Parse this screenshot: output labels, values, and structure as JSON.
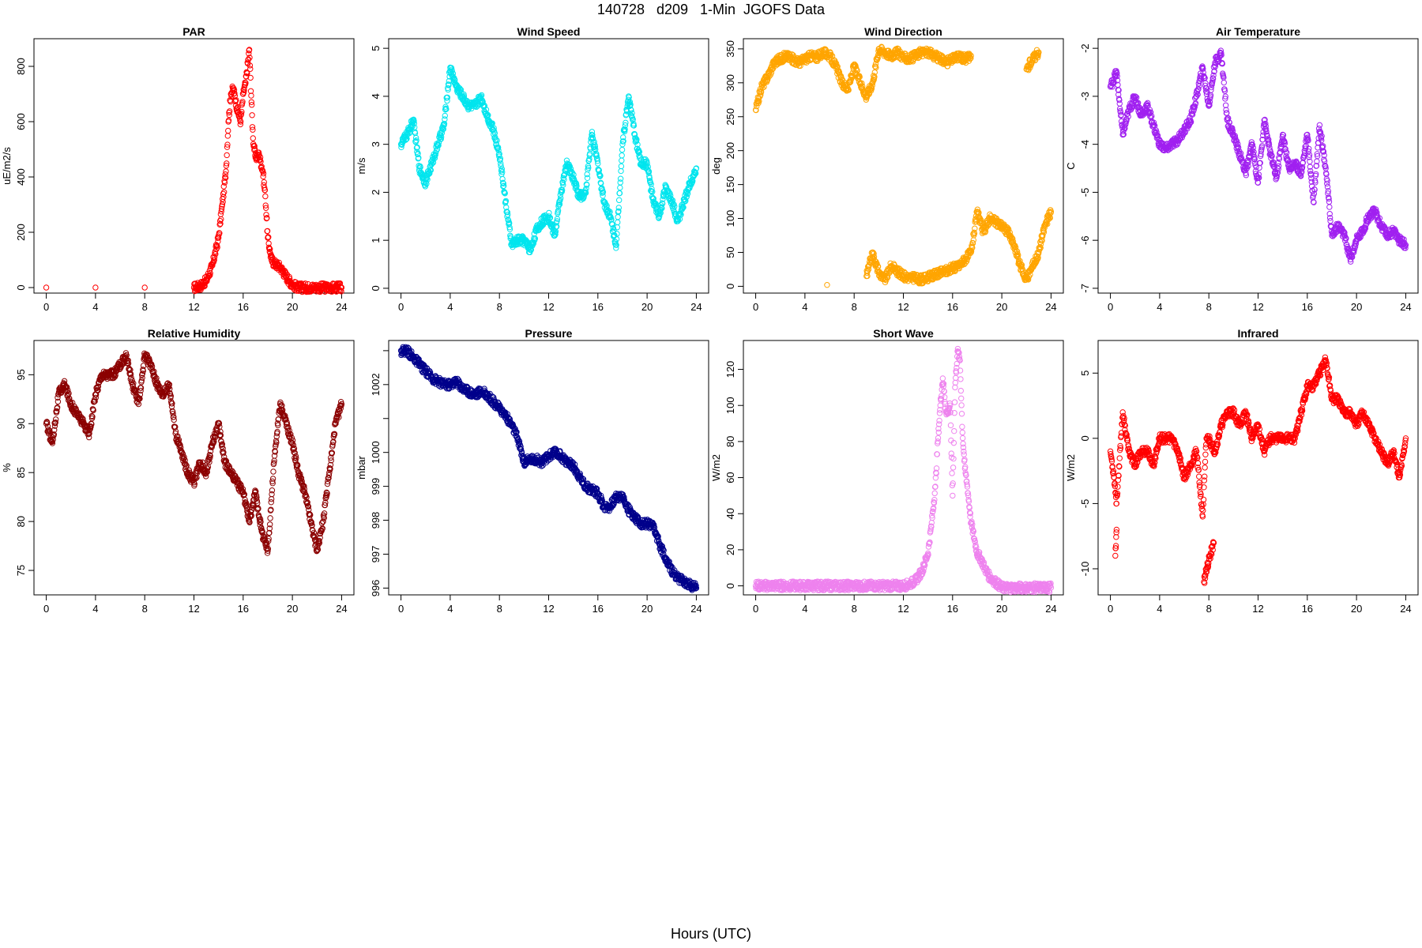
{
  "page_title": "140728   d209   1-Min  JGOFS Data",
  "x_caption": "Hours (UTC)",
  "chart_data": [
    {
      "type": "scatter",
      "title": "PAR",
      "ylabel": "uE/m2/s",
      "color": "#ff0000",
      "xlim": [
        -1,
        25
      ],
      "ylim": [
        -20,
        900
      ],
      "xticks": [
        0,
        4,
        8,
        12,
        16,
        20,
        24
      ],
      "yticks": [
        0,
        200,
        400,
        600,
        800
      ],
      "series": [
        {
          "x": [
            0,
            4,
            8,
            12,
            12.5,
            13,
            13.5,
            14,
            14.3,
            14.6,
            14.8,
            15,
            15.2,
            15.5,
            15.8,
            16,
            16.2,
            16.5,
            16.8,
            17,
            17.3,
            17.6,
            17.8,
            18,
            18.3,
            18.6,
            19,
            19.5,
            20,
            20.5,
            21,
            22,
            23,
            24
          ],
          "y": [
            0,
            0,
            0,
            0,
            5,
            25,
            80,
            180,
            300,
            420,
            600,
            700,
            720,
            650,
            600,
            700,
            740,
            860,
            540,
            470,
            480,
            420,
            330,
            180,
            100,
            85,
            75,
            40,
            10,
            0,
            0,
            0,
            0,
            0
          ]
        }
      ]
    },
    {
      "type": "scatter",
      "title": "Wind Speed",
      "ylabel": "m/s",
      "color": "#00e5ee",
      "xlim": [
        -1,
        25
      ],
      "ylim": [
        -0.1,
        5.2
      ],
      "xticks": [
        0,
        4,
        8,
        12,
        16,
        20,
        24
      ],
      "yticks": [
        0,
        1,
        2,
        3,
        4,
        5
      ],
      "series": [
        {
          "x": [
            0,
            0.5,
            1,
            1.5,
            2,
            2.5,
            3,
            3.5,
            4,
            4.5,
            5,
            5.5,
            6,
            6.5,
            7,
            7.5,
            8,
            8.5,
            9,
            9.5,
            10,
            10.5,
            11,
            11.5,
            12,
            12.5,
            13,
            13.5,
            14,
            14.5,
            15,
            15.5,
            16,
            16.5,
            17,
            17.5,
            18,
            18.5,
            19,
            19.5,
            20,
            20.5,
            21,
            21.5,
            22,
            22.5,
            23,
            23.5,
            24
          ],
          "y": [
            3.0,
            3.2,
            3.5,
            2.5,
            2.2,
            2.6,
            3.0,
            3.4,
            4.6,
            4.2,
            4.0,
            3.8,
            3.8,
            4.0,
            3.6,
            3.3,
            2.8,
            1.8,
            0.9,
            1.0,
            1.0,
            0.8,
            1.2,
            1.4,
            1.5,
            1.1,
            2.0,
            2.6,
            2.3,
            1.9,
            2.0,
            3.2,
            2.6,
            1.8,
            1.5,
            0.9,
            3.0,
            4.0,
            3.2,
            2.6,
            2.6,
            1.8,
            1.5,
            2.1,
            1.8,
            1.4,
            1.8,
            2.2,
            2.5
          ]
        }
      ]
    },
    {
      "type": "scatter",
      "title": "Wind Direction",
      "ylabel": "deg",
      "color": "#ffa500",
      "xlim": [
        -1,
        25
      ],
      "ylim": [
        -10,
        365
      ],
      "xticks": [
        0,
        4,
        8,
        12,
        16,
        20,
        24
      ],
      "yticks": [
        0,
        50,
        100,
        150,
        200,
        250,
        300,
        350
      ],
      "series": [
        {
          "x": [
            0,
            0.5,
            1,
            1.5,
            2,
            2.5,
            3,
            3.5,
            4,
            4.5,
            5,
            5.5,
            6,
            6.5,
            7,
            7.5,
            8,
            8.5,
            9,
            9.5,
            10,
            10.5,
            11,
            11.5,
            12,
            12.5,
            13,
            13.5,
            14,
            14.5,
            15,
            15.5,
            16,
            16.5,
            17,
            17.5,
            5.8,
            9,
            9.5,
            10,
            10.5,
            11,
            12,
            13.5,
            16.5,
            17,
            17.5,
            18,
            18.5,
            19,
            19.5,
            20,
            20.5,
            21,
            21.5,
            22,
            22.5,
            23,
            23.5,
            24,
            22,
            22.5,
            23
          ],
          "y": [
            260,
            295,
            310,
            330,
            335,
            340,
            335,
            330,
            335,
            340,
            338,
            345,
            340,
            325,
            300,
            290,
            325,
            300,
            280,
            300,
            350,
            345,
            340,
            345,
            338,
            335,
            340,
            345,
            345,
            340,
            335,
            330,
            335,
            340,
            335,
            340,
            2,
            15,
            50,
            20,
            10,
            30,
            15,
            10,
            30,
            40,
            50,
            110,
            80,
            100,
            95,
            90,
            80,
            60,
            30,
            10,
            30,
            50,
            90,
            110,
            320,
            335,
            345
          ]
        }
      ]
    },
    {
      "type": "scatter",
      "title": "Air Temperature",
      "ylabel": "C",
      "color": "#a020f0",
      "xlim": [
        -1,
        25
      ],
      "ylim": [
        -7.1,
        -1.8
      ],
      "xticks": [
        0,
        4,
        8,
        12,
        16,
        20,
        24
      ],
      "yticks": [
        -7,
        -6,
        -5,
        -4,
        -3,
        -2
      ],
      "series": [
        {
          "x": [
            0,
            0.5,
            1,
            1.5,
            2,
            2.5,
            3,
            3.5,
            4,
            4.5,
            5,
            5.5,
            6,
            6.5,
            7,
            7.5,
            8,
            8.5,
            9,
            9.5,
            10,
            10.5,
            11,
            11.5,
            12,
            12.5,
            13,
            13.5,
            14,
            14.5,
            15,
            15.5,
            16,
            16.5,
            17,
            17.5,
            18,
            18.5,
            19,
            19.5,
            20,
            20.5,
            21,
            21.5,
            22,
            22.5,
            23,
            23.5,
            24
          ],
          "y": [
            -2.8,
            -2.5,
            -3.8,
            -3.3,
            -3.0,
            -3.4,
            -3.2,
            -3.6,
            -4.0,
            -4.1,
            -4.0,
            -3.9,
            -3.7,
            -3.5,
            -3.0,
            -2.4,
            -3.2,
            -2.3,
            -2.1,
            -3.5,
            -3.8,
            -4.2,
            -4.6,
            -4.0,
            -4.8,
            -3.5,
            -4.2,
            -4.7,
            -3.8,
            -4.5,
            -4.4,
            -4.6,
            -3.8,
            -5.2,
            -3.6,
            -4.5,
            -5.9,
            -5.7,
            -5.9,
            -6.4,
            -6.0,
            -5.8,
            -5.5,
            -5.4,
            -5.7,
            -5.9,
            -5.8,
            -6.0,
            -6.1
          ]
        }
      ]
    },
    {
      "type": "scatter",
      "title": "Relative Humidity",
      "ylabel": "%",
      "color": "#8b0000",
      "xlim": [
        -1,
        25
      ],
      "ylim": [
        72.5,
        98.5
      ],
      "xticks": [
        0,
        4,
        8,
        12,
        16,
        20,
        24
      ],
      "yticks": [
        75,
        80,
        85,
        90,
        95
      ],
      "series": [
        {
          "x": [
            0,
            0.5,
            1,
            1.5,
            2,
            2.5,
            3,
            3.5,
            4,
            4.5,
            5,
            5.5,
            6,
            6.5,
            7,
            7.5,
            8,
            8.5,
            9,
            9.5,
            10,
            10.5,
            11,
            11.5,
            12,
            12.5,
            13,
            13.5,
            14,
            14.5,
            15,
            15.5,
            16,
            16.5,
            17,
            17.5,
            18,
            18.5,
            19,
            19.5,
            20,
            20.5,
            21,
            21.5,
            22,
            22.5,
            23,
            23.5,
            24
          ],
          "y": [
            90,
            88,
            93,
            94,
            92,
            91,
            90,
            89,
            93,
            95,
            95,
            95,
            96,
            97,
            94,
            92,
            97,
            96,
            94,
            93,
            94,
            89,
            87,
            85,
            84,
            86,
            85,
            88,
            90,
            86,
            85,
            84,
            83,
            80,
            83,
            79,
            77,
            86,
            92,
            90,
            88,
            85,
            83,
            80,
            77,
            80,
            85,
            90,
            92
          ]
        }
      ]
    },
    {
      "type": "scatter",
      "title": "Pressure",
      "ylabel": "mbar",
      "color": "#00008b",
      "xlim": [
        -1,
        25
      ],
      "ylim": [
        995.8,
        1003.3
      ],
      "xticks": [
        0,
        4,
        8,
        12,
        16,
        20,
        24
      ],
      "yticks": [
        996,
        997,
        998,
        999,
        1000,
        1001,
        1002,
        1003
      ],
      "ytick_labels": [
        "996",
        "997",
        "998",
        "999",
        "1000",
        "",
        "1002",
        ""
      ],
      "series": [
        {
          "x": [
            0,
            0.5,
            1,
            1.5,
            2,
            2.5,
            3,
            3.5,
            4,
            4.5,
            5,
            5.5,
            6,
            6.5,
            7,
            7.5,
            8,
            8.5,
            9,
            9.5,
            10,
            10.5,
            11,
            11.5,
            12,
            12.5,
            13,
            13.5,
            14,
            14.5,
            15,
            15.5,
            16,
            16.5,
            17,
            17.5,
            18,
            18.5,
            19,
            19.5,
            20,
            20.5,
            21,
            21.5,
            22,
            22.5,
            23,
            23.5,
            24
          ],
          "y": [
            1003.0,
            1003.0,
            1002.8,
            1002.6,
            1002.4,
            1002.2,
            1002.1,
            1002.0,
            1002.0,
            1002.1,
            1001.9,
            1001.8,
            1001.7,
            1001.8,
            1001.7,
            1001.5,
            1001.3,
            1001.1,
            1000.8,
            1000.4,
            999.7,
            999.8,
            999.8,
            999.7,
            999.9,
            1000.0,
            999.9,
            999.7,
            999.6,
            999.3,
            999.0,
            998.9,
            998.8,
            998.4,
            998.4,
            998.7,
            998.7,
            998.3,
            998.1,
            997.9,
            997.9,
            997.8,
            997.3,
            996.9,
            996.5,
            996.3,
            996.2,
            996.1,
            996.0
          ]
        }
      ]
    },
    {
      "type": "scatter",
      "title": "Short Wave",
      "ylabel": "W/m2",
      "color": "#ee82ee",
      "xlim": [
        -1,
        25
      ],
      "ylim": [
        -5,
        136
      ],
      "xticks": [
        0,
        4,
        8,
        12,
        16,
        20,
        24
      ],
      "yticks": [
        0,
        20,
        40,
        60,
        80,
        100,
        120
      ],
      "series": [
        {
          "x": [
            0,
            2,
            4,
            6,
            8,
            10,
            12,
            12.5,
            13,
            13.5,
            14,
            14.3,
            14.6,
            14.8,
            15,
            15.2,
            15.5,
            15.8,
            16,
            16.2,
            16.4,
            16.6,
            16.8,
            17,
            17.2,
            17.5,
            17.8,
            18,
            18.3,
            18.6,
            19,
            19.5,
            20,
            21,
            22,
            23,
            24
          ],
          "y": [
            0,
            0,
            0,
            0,
            0,
            0,
            0,
            1,
            3,
            8,
            18,
            35,
            55,
            80,
            100,
            115,
            95,
            100,
            50,
            110,
            130,
            125,
            85,
            65,
            55,
            35,
            25,
            18,
            15,
            10,
            5,
            2,
            -1,
            -1,
            -1,
            -1,
            -1
          ]
        }
      ]
    },
    {
      "type": "scatter",
      "title": "Infrared",
      "ylabel": "W/m2",
      "color": "#ff0000",
      "xlim": [
        -1,
        25
      ],
      "ylim": [
        -12,
        7.5
      ],
      "xticks": [
        0,
        4,
        8,
        12,
        16,
        20,
        24
      ],
      "yticks": [
        -10,
        -5,
        0,
        5
      ],
      "series": [
        {
          "x": [
            0,
            0.3,
            0.5,
            1,
            1.5,
            2,
            2.5,
            3,
            3.5,
            4,
            4.5,
            5,
            5.5,
            6,
            6.5,
            7,
            7.5,
            7.8,
            8,
            8.5,
            9,
            9.5,
            10,
            10.5,
            11,
            11.5,
            12,
            12.5,
            13,
            13.5,
            14,
            14.5,
            15,
            15.5,
            16,
            16.5,
            17,
            17.5,
            18,
            18.5,
            19,
            19.5,
            20,
            20.5,
            21,
            21.5,
            22,
            22.5,
            23,
            23.5,
            24,
            0.4,
            0.5,
            7.6,
            7.8,
            8.4
          ],
          "y": [
            -1,
            -3,
            -5,
            2,
            -1,
            -2,
            -1,
            -1,
            -2,
            0,
            0,
            0,
            -1,
            -3,
            -2,
            -1,
            -6,
            0,
            0,
            -1,
            1,
            2,
            2,
            1,
            2,
            0,
            1,
            -1,
            0,
            0,
            0,
            0,
            0,
            2,
            4,
            4,
            5,
            6,
            3,
            3,
            2,
            2,
            1,
            2,
            1,
            0,
            -1,
            -2,
            -1,
            -3,
            0,
            -9,
            -7,
            -11,
            -10,
            -8
          ]
        }
      ]
    }
  ]
}
